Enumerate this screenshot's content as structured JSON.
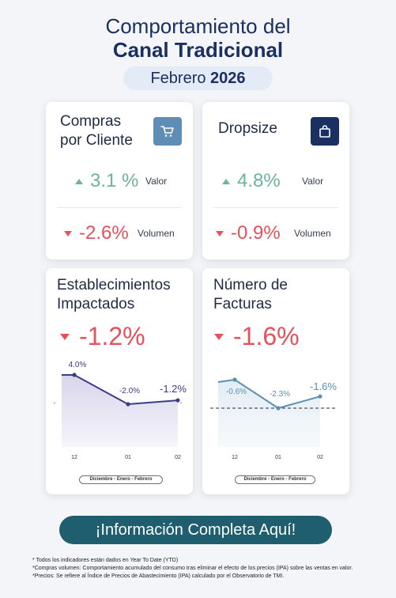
{
  "header": {
    "title_line1": "Comportamiento del",
    "title_line2": "Canal Tradicional",
    "period_month": "Febrero",
    "period_year": "2026"
  },
  "cards": {
    "compras": {
      "title_line1": "Compras",
      "title_line2": "por Cliente",
      "icon": "cart-icon",
      "valor": {
        "value": "3.1 %",
        "label": "Valor",
        "trend": "up"
      },
      "volumen": {
        "value": "-2.6%",
        "label": "Volumen",
        "trend": "down"
      }
    },
    "dropsize": {
      "title": "Dropsize",
      "icon": "shopping-bag-icon",
      "valor": {
        "value": "4.8%",
        "label": "Valor",
        "trend": "up"
      },
      "volumen": {
        "value": "-0.9%",
        "label": "Volumen",
        "trend": "down"
      }
    },
    "establecimientos": {
      "title_line1": "Establecimientos",
      "title_line2": "Impactados",
      "value": "-1.2%",
      "legend": "Diciembre - Enero - Febrero"
    },
    "facturas": {
      "title_line1": "Número de",
      "title_line2": "Facturas",
      "value": "-1.6%",
      "legend": "Diciembre - Enero - Febrero"
    }
  },
  "chart_data": [
    {
      "type": "area",
      "categories": [
        "12",
        "01",
        "02"
      ],
      "values": [
        4.0,
        -2.0,
        -1.2
      ],
      "data_labels": [
        "4.0%",
        "-2.0%",
        "-1.2%"
      ],
      "color": "#3d3a8c",
      "baseline": "-"
    },
    {
      "type": "area",
      "categories": [
        "12",
        "01",
        "02"
      ],
      "values": [
        -0.6,
        -2.3,
        -1.6
      ],
      "data_labels": [
        "-0.6%",
        "-2.3%",
        "-1.6%"
      ],
      "color": "#5b8fb0",
      "reference_line": "dashed"
    }
  ],
  "cta": {
    "label": "¡Información Completa Aquí!"
  },
  "footnotes": [
    "* Todos los indicadores están dados en Year To Date (YTD)",
    "*Compras volumen: Comportamiento acumulado del consumo tras eliminar el efecto de los precios (IPA) sobre las ventas en valor.",
    "*Precios: Se refiere al Índice de Precios de Abastecimiento (IPA) calculado por el Observatorio de TMI."
  ],
  "colors": {
    "title": "#1b2f63",
    "positive": "#6db39e",
    "negative": "#e8505b",
    "cta_bg": "#1f5e6e"
  }
}
